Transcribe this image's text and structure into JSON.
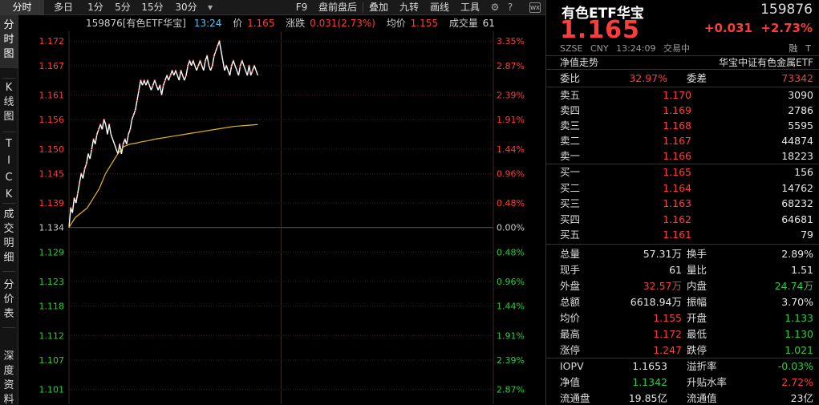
{
  "toolbar": {
    "left_tabs": [
      "分时",
      "多日",
      "1分",
      "5分",
      "15分",
      "30分"
    ],
    "active_tab": "分时",
    "right_items": [
      "F9",
      "盘前盘后",
      "叠加",
      "九转",
      "画线",
      "工具"
    ],
    "wx_label": "WX"
  },
  "sidebar": {
    "tabs": [
      "分时图",
      "K线图",
      "TICK",
      "成交明细",
      "分价表",
      "深度资料"
    ]
  },
  "chart": {
    "info": {
      "code_name": "159876[有色ETF华宝]",
      "time": "13:24",
      "price_label": "价",
      "price": "1.165",
      "change_label": "涨跌",
      "change": "0.031(2.73%)",
      "avg_label": "均价",
      "avg": "1.155",
      "volume_label": "成交量",
      "volume": "61"
    },
    "y_labels": [
      "1.172",
      "1.167",
      "1.161",
      "1.156",
      "1.150",
      "1.145",
      "1.139",
      "1.134",
      "1.129",
      "1.123",
      "1.118",
      "1.112",
      "1.107",
      "1.101"
    ],
    "pct_labels": [
      "3.35%",
      "2.87%",
      "2.39%",
      "1.91%",
      "1.44%",
      "0.96%",
      "0.48%",
      "0.00%",
      "0.48%",
      "0.96%",
      "1.44%",
      "1.91%",
      "2.39%",
      "2.87%"
    ],
    "colors": {
      "up": "#ff3b3b",
      "down": "#2ecc40",
      "flat": "#cccccc",
      "price_line": "#ffffff",
      "avg_line": "#e8b818",
      "grid": "#3a2222"
    }
  },
  "chart_data": {
    "type": "line",
    "series": [
      {
        "name": "价",
        "values": [
          1.134,
          1.138,
          1.137,
          1.14,
          1.139,
          1.141,
          1.143,
          1.145,
          1.144,
          1.146,
          1.147,
          1.149,
          1.148,
          1.15,
          1.152,
          1.151,
          1.153,
          1.154,
          1.155,
          1.154,
          1.156,
          1.155,
          1.153,
          1.155,
          1.153,
          1.152,
          1.151,
          1.15,
          1.149,
          1.151,
          1.149,
          1.151,
          1.152,
          1.151,
          1.153,
          1.154,
          1.156,
          1.157,
          1.158,
          1.16,
          1.162,
          1.164,
          1.163,
          1.164,
          1.163,
          1.164,
          1.163,
          1.162,
          1.163,
          1.164,
          1.163,
          1.162,
          1.163,
          1.161,
          1.163,
          1.164,
          1.165,
          1.164,
          1.165,
          1.166,
          1.165,
          1.166,
          1.165,
          1.164,
          1.166,
          1.165,
          1.164,
          1.165,
          1.167,
          1.168,
          1.167,
          1.168,
          1.167,
          1.166,
          1.167,
          1.168,
          1.167,
          1.166,
          1.168,
          1.169,
          1.167,
          1.166,
          1.167,
          1.169,
          1.17,
          1.171,
          1.172,
          1.17,
          1.168,
          1.166,
          1.167,
          1.166,
          1.165,
          1.167,
          1.168,
          1.167,
          1.166,
          1.165,
          1.167,
          1.168,
          1.167,
          1.166,
          1.165,
          1.167,
          1.165,
          1.166,
          1.167,
          1.166,
          1.165
        ]
      },
      {
        "name": "均价",
        "values": [
          1.134,
          1.136,
          1.137,
          1.138,
          1.14,
          1.142,
          1.145,
          1.147,
          1.149,
          1.1505,
          1.151,
          1.1512,
          1.1515,
          1.1517,
          1.152,
          1.1522,
          1.1524,
          1.1526,
          1.1528,
          1.153,
          1.1532,
          1.1534,
          1.1536,
          1.1538,
          1.154,
          1.1542,
          1.1544,
          1.1546,
          1.1547,
          1.1548,
          1.1549,
          1.155
        ]
      }
    ],
    "ylim": [
      1.098,
      1.174
    ],
    "pre_close": 1.134,
    "grid": true
  },
  "panel": {
    "name": "有色ETF华宝",
    "code": "159876",
    "price": "1.165",
    "change": "+0.031",
    "change_pct": "+2.73%",
    "exchange": "SZSE",
    "currency": "CNY",
    "time": "13:24:09",
    "status": "交易中",
    "rong": "融",
    "tong": "T",
    "nav_label": "净值走势",
    "index_name": "华宝中证有色金属ETF",
    "weibi_label": "委比",
    "weibi": "32.97%",
    "weicha_label": "委差",
    "weicha": "73342",
    "asks": [
      {
        "label": "卖五",
        "price": "1.170",
        "volume": "3090"
      },
      {
        "label": "卖四",
        "price": "1.169",
        "volume": "2786"
      },
      {
        "label": "卖三",
        "price": "1.168",
        "volume": "5595"
      },
      {
        "label": "卖二",
        "price": "1.167",
        "volume": "44874"
      },
      {
        "label": "卖一",
        "price": "1.166",
        "volume": "18223"
      }
    ],
    "bids": [
      {
        "label": "买一",
        "price": "1.165",
        "volume": "156"
      },
      {
        "label": "买二",
        "price": "1.164",
        "volume": "14762"
      },
      {
        "label": "买三",
        "price": "1.163",
        "volume": "68232"
      },
      {
        "label": "买四",
        "price": "1.162",
        "volume": "64681"
      },
      {
        "label": "买五",
        "price": "1.161",
        "volume": "79"
      }
    ],
    "stats": [
      {
        "l1": "总量",
        "v1": "57.31万",
        "c1": "white",
        "l2": "换手",
        "v2": "2.89%",
        "c2": "white"
      },
      {
        "l1": "现手",
        "v1": "61",
        "c1": "white",
        "l2": "量比",
        "v2": "1.51",
        "c2": "white"
      },
      {
        "l1": "外盘",
        "v1": "32.57万",
        "c1": "red",
        "l2": "内盘",
        "v2": "24.74万",
        "c2": "green"
      },
      {
        "l1": "总额",
        "v1": "6618.94万",
        "c1": "white",
        "l2": "振幅",
        "v2": "3.70%",
        "c2": "white"
      },
      {
        "l1": "均价",
        "v1": "1.155",
        "c1": "red",
        "l2": "开盘",
        "v2": "1.133",
        "c2": "green"
      },
      {
        "l1": "最高",
        "v1": "1.172",
        "c1": "red",
        "l2": "最低",
        "v2": "1.130",
        "c2": "green"
      },
      {
        "l1": "涨停",
        "v1": "1.247",
        "c1": "red",
        "l2": "跌停",
        "v2": "1.021",
        "c2": "green"
      }
    ],
    "extra": [
      {
        "l1": "IOPV",
        "v1": "1.1653",
        "c1": "white",
        "l2": "溢折率",
        "v2": "-0.03%",
        "c2": "green"
      },
      {
        "l1": "净值",
        "v1": "1.1342",
        "c1": "green",
        "l2": "升贴水率",
        "v2": "2.72%",
        "c2": "red"
      },
      {
        "l1": "流通盘",
        "v1": "19.85亿",
        "c1": "white",
        "l2": "流通值",
        "v2": "23亿",
        "c2": "white"
      }
    ]
  }
}
